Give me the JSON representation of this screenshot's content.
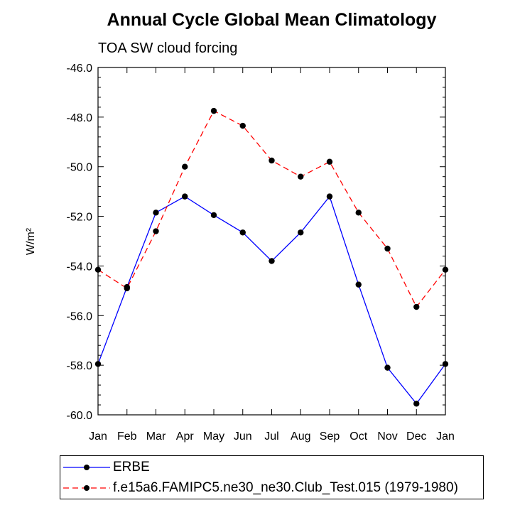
{
  "chart_data": {
    "type": "line",
    "title": "Annual Cycle Global Mean Climatology",
    "subtitle": "TOA SW cloud forcing",
    "ylabel": "W/m²",
    "xlabel": "",
    "categories": [
      "Jan",
      "Feb",
      "Mar",
      "Apr",
      "May",
      "Jun",
      "Jul",
      "Aug",
      "Sep",
      "Oct",
      "Nov",
      "Dec",
      "Jan"
    ],
    "ylim": [
      -60.0,
      -46.0
    ],
    "yticks": [
      "-46.0",
      "-48.0",
      "-50.0",
      "-52.0",
      "-54.0",
      "-56.0",
      "-58.0",
      "-60.0"
    ],
    "series": [
      {
        "name": "ERBE",
        "color": "#0000ff",
        "style": "solid",
        "values": [
          -57.95,
          -54.85,
          -51.85,
          -51.2,
          -51.95,
          -52.65,
          -53.8,
          -52.65,
          -51.2,
          -54.75,
          -58.1,
          -59.55,
          -57.95
        ]
      },
      {
        "name": "f.e15a6.FAMIPC5.ne30_ne30.Club_Test.015 (1979-1980)",
        "color": "#ff0000",
        "style": "dashed",
        "values": [
          -54.15,
          -54.9,
          -52.6,
          -50.0,
          -47.75,
          -48.35,
          -49.75,
          -50.4,
          -49.8,
          -51.85,
          -53.3,
          -55.65,
          -54.15
        ]
      }
    ],
    "legend": "bottom",
    "grid": false
  }
}
